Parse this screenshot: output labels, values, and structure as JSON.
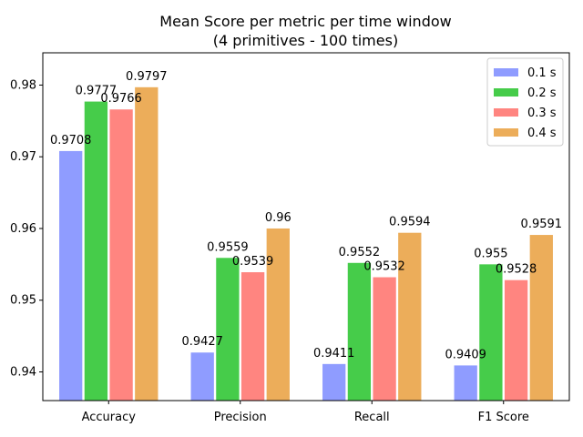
{
  "chart_data": {
    "type": "bar",
    "title": "Mean Score per metric per time window",
    "subtitle": "(4 primitives - 100 times)",
    "xlabel": "",
    "ylabel": "",
    "categories": [
      "Accuracy",
      "Precision",
      "Recall",
      "F1 Score"
    ],
    "series": [
      {
        "name": "0.1 s",
        "color": "#8f9cff",
        "values": [
          0.9708,
          0.9427,
          0.9411,
          0.9409
        ],
        "labels": [
          "0.9708",
          "0.9427",
          "0.9411",
          "0.9409"
        ]
      },
      {
        "name": "0.2 s",
        "color": "#46cc4a",
        "values": [
          0.9777,
          0.9559,
          0.9552,
          0.955
        ],
        "labels": [
          "0.9777",
          "0.9559",
          "0.9552",
          "0.955"
        ]
      },
      {
        "name": "0.3 s",
        "color": "#ff8580",
        "values": [
          0.9766,
          0.9539,
          0.9532,
          0.9528
        ],
        "labels": [
          "0.9766",
          "0.9539",
          "0.9532",
          "0.9528"
        ]
      },
      {
        "name": "0.4 s",
        "color": "#ecad5a",
        "values": [
          0.9797,
          0.96,
          0.9594,
          0.9591
        ],
        "labels": [
          "0.9797",
          "0.96",
          "0.9594",
          "0.9591"
        ]
      }
    ],
    "ylim": [
      0.936,
      0.9845
    ],
    "yticks": [
      0.94,
      0.95,
      0.96,
      0.97,
      0.98
    ],
    "ytick_labels": [
      "0.94",
      "0.95",
      "0.96",
      "0.97",
      "0.98"
    ],
    "grid": false,
    "legend_position": "top-right"
  }
}
